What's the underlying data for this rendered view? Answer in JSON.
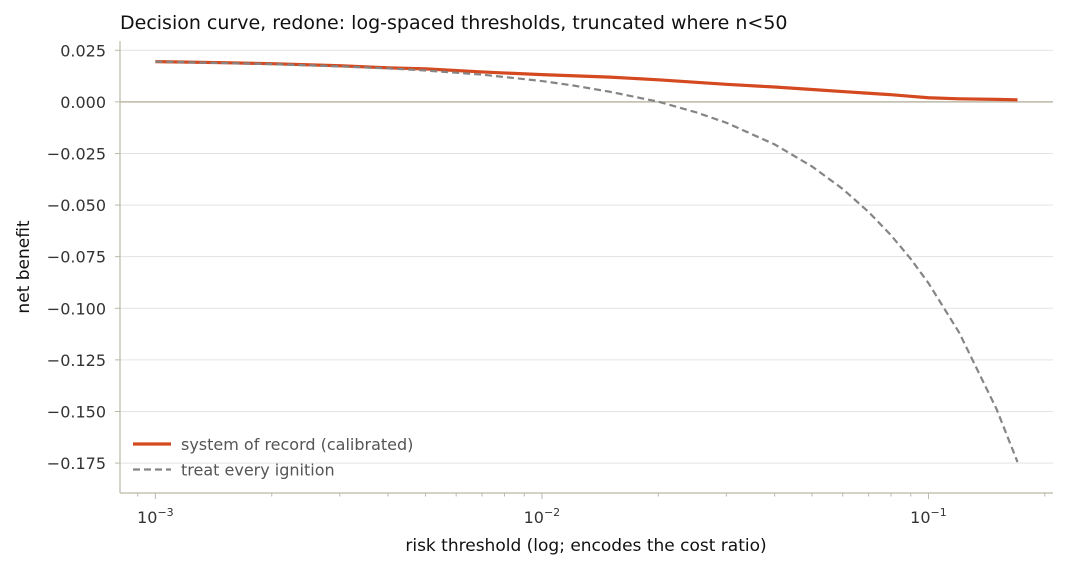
{
  "chart_data": {
    "type": "line",
    "title": "Decision curve, redone: log-spaced thresholds, truncated where n<50",
    "xlabel": "risk threshold (log; encodes the cost ratio)",
    "ylabel": "net benefit",
    "xscale": "log",
    "xlim": [
      0.00081,
      0.21
    ],
    "ylim": [
      -0.1895,
      0.0295
    ],
    "grid": "horizontal",
    "legend_position": "bottom-left",
    "x_ticks": [
      {
        "value": 0.001,
        "label": "10−3"
      },
      {
        "value": 0.01,
        "label": "10−2"
      },
      {
        "value": 0.1,
        "label": "10−1"
      }
    ],
    "y_ticks": [
      {
        "value": 0.025,
        "label": "0.025"
      },
      {
        "value": 0.0,
        "label": "0.000"
      },
      {
        "value": -0.025,
        "label": "−0.025"
      },
      {
        "value": -0.05,
        "label": "−0.050"
      },
      {
        "value": -0.075,
        "label": "−0.075"
      },
      {
        "value": -0.1,
        "label": "−0.100"
      },
      {
        "value": -0.125,
        "label": "−0.125"
      },
      {
        "value": -0.15,
        "label": "−0.150"
      },
      {
        "value": -0.175,
        "label": "−0.175"
      }
    ],
    "reference_line": {
      "y": 0,
      "color": "#bcb9a8"
    },
    "series": [
      {
        "name": "system of record (calibrated)",
        "color": "#d4491f",
        "dash": "solid",
        "x": [
          0.001,
          0.0015,
          0.002,
          0.003,
          0.004,
          0.005,
          0.007,
          0.01,
          0.015,
          0.02,
          0.03,
          0.04,
          0.05,
          0.06,
          0.07,
          0.08,
          0.09,
          0.1,
          0.12,
          0.15,
          0.17
        ],
        "y": [
          0.0195,
          0.019,
          0.0185,
          0.0175,
          0.0165,
          0.016,
          0.0145,
          0.0132,
          0.012,
          0.0107,
          0.0085,
          0.0072,
          0.006,
          0.005,
          0.0042,
          0.0035,
          0.0027,
          0.002,
          0.0015,
          0.0012,
          0.001
        ]
      },
      {
        "name": "treat every ignition",
        "color": "#858585",
        "dash": "dashed",
        "x": [
          0.001,
          0.0015,
          0.002,
          0.003,
          0.004,
          0.005,
          0.007,
          0.01,
          0.012,
          0.015,
          0.02,
          0.025,
          0.03,
          0.04,
          0.05,
          0.06,
          0.07,
          0.08,
          0.09,
          0.1,
          0.12,
          0.15,
          0.17
        ],
        "y": [
          0.0195,
          0.0188,
          0.0183,
          0.0172,
          0.0162,
          0.0152,
          0.0132,
          0.0101,
          0.008,
          0.0049,
          0.0001,
          -0.005,
          -0.0101,
          -0.0206,
          -0.0313,
          -0.0422,
          -0.0533,
          -0.0646,
          -0.0761,
          -0.0878,
          -0.1117,
          -0.1488,
          -0.1745
        ]
      }
    ]
  }
}
